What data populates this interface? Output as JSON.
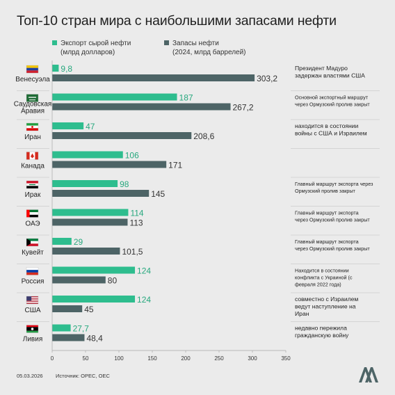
{
  "title": "Топ-10 стран мира с наибольшими запасами нефти",
  "legend": {
    "export": {
      "line1": "Экспорт сырой нефти",
      "line2": "(млрд долларов)"
    },
    "reserves": {
      "line1": "Запасы нефти",
      "line2": "(2024, млрд баррелей)"
    }
  },
  "colors": {
    "export": "#2ebd8e",
    "reserves": "#4d6466",
    "export_text": "#27a87e",
    "reserves_text": "#333333",
    "background": "#ebebeb"
  },
  "chart_data": {
    "type": "bar",
    "orientation": "horizontal",
    "categories": [
      {
        "name": [
          "Венесуэла"
        ],
        "flag": "venezuela-flag",
        "note": [
          "Президент Мадуро",
          "задержан властями США"
        ],
        "note_style": "regular"
      },
      {
        "name": [
          "Саудовская",
          "Аравия"
        ],
        "flag": "saudi-arabia-flag",
        "note": [
          "Основной экспортный маршрут",
          "через Ормузский пролив закрыт"
        ],
        "note_style": "small"
      },
      {
        "name": [
          "Иран"
        ],
        "flag": "iran-flag",
        "note": [
          "находится в состоянии",
          "войны с США и Израилем"
        ],
        "note_style": "regular"
      },
      {
        "name": [
          "Канада"
        ],
        "flag": "canada-flag",
        "note": [],
        "note_style": "regular"
      },
      {
        "name": [
          "Ирак"
        ],
        "flag": "iraq-flag",
        "note": [
          "Главный маршрут экспорта через",
          "Ормузский пролив закрыт"
        ],
        "note_style": "small"
      },
      {
        "name": [
          "ОАЭ"
        ],
        "flag": "uae-flag",
        "note": [
          "Главный маршрут экспорта",
          "через Ормузский пролив закрыт"
        ],
        "note_style": "small"
      },
      {
        "name": [
          "Кувейт"
        ],
        "flag": "kuwait-flag",
        "note": [
          "Главный маршрут экспорта",
          "через Ормузский пролив закрыт"
        ],
        "note_style": "small"
      },
      {
        "name": [
          "Россия"
        ],
        "flag": "russia-flag",
        "note": [
          "Находится в состоянии",
          "конфликта с Украиной (с",
          "февраля 2022 года)"
        ],
        "note_style": "small"
      },
      {
        "name": [
          "США"
        ],
        "flag": "usa-flag",
        "note": [
          "совместно с Израилем",
          "ведут наступление на",
          "Иран"
        ],
        "note_style": "regular"
      },
      {
        "name": [
          "Ливия"
        ],
        "flag": "libya-flag",
        "note": [
          "недавно пережила",
          "гражданскую войну"
        ],
        "note_style": "regular"
      }
    ],
    "series": [
      {
        "name": "Экспорт сырой нефти (млрд долларов)",
        "key": "export",
        "values": [
          9.8,
          187,
          47,
          106,
          98,
          114,
          29,
          124,
          124,
          27.7
        ],
        "labels": [
          "9,8",
          "187",
          "47",
          "106",
          "98",
          "114",
          "29",
          "124",
          "124",
          "27,7"
        ]
      },
      {
        "name": "Запасы нефти (2024, млрд баррелей)",
        "key": "reserves",
        "values": [
          303.2,
          267.2,
          208.6,
          171,
          145,
          113,
          101.5,
          80,
          45,
          48.4
        ],
        "labels": [
          "303,2",
          "267,2",
          "208,6",
          "171",
          "145",
          "113",
          "101,5",
          "80",
          "45",
          "48,4"
        ]
      }
    ],
    "xlim": [
      0,
      350
    ],
    "xticks": [
      0,
      50,
      100,
      150,
      200,
      250,
      300,
      350
    ],
    "xtick_labels": [
      "0",
      "50",
      "100",
      "150",
      "200",
      "250",
      "300",
      "350"
    ],
    "grid": false
  },
  "footer": {
    "date": "05.03.2026",
    "source": "Источник: OPEC, OEC"
  },
  "logo": {
    "text": "AA",
    "icon": "anadolu-agency-logo"
  }
}
